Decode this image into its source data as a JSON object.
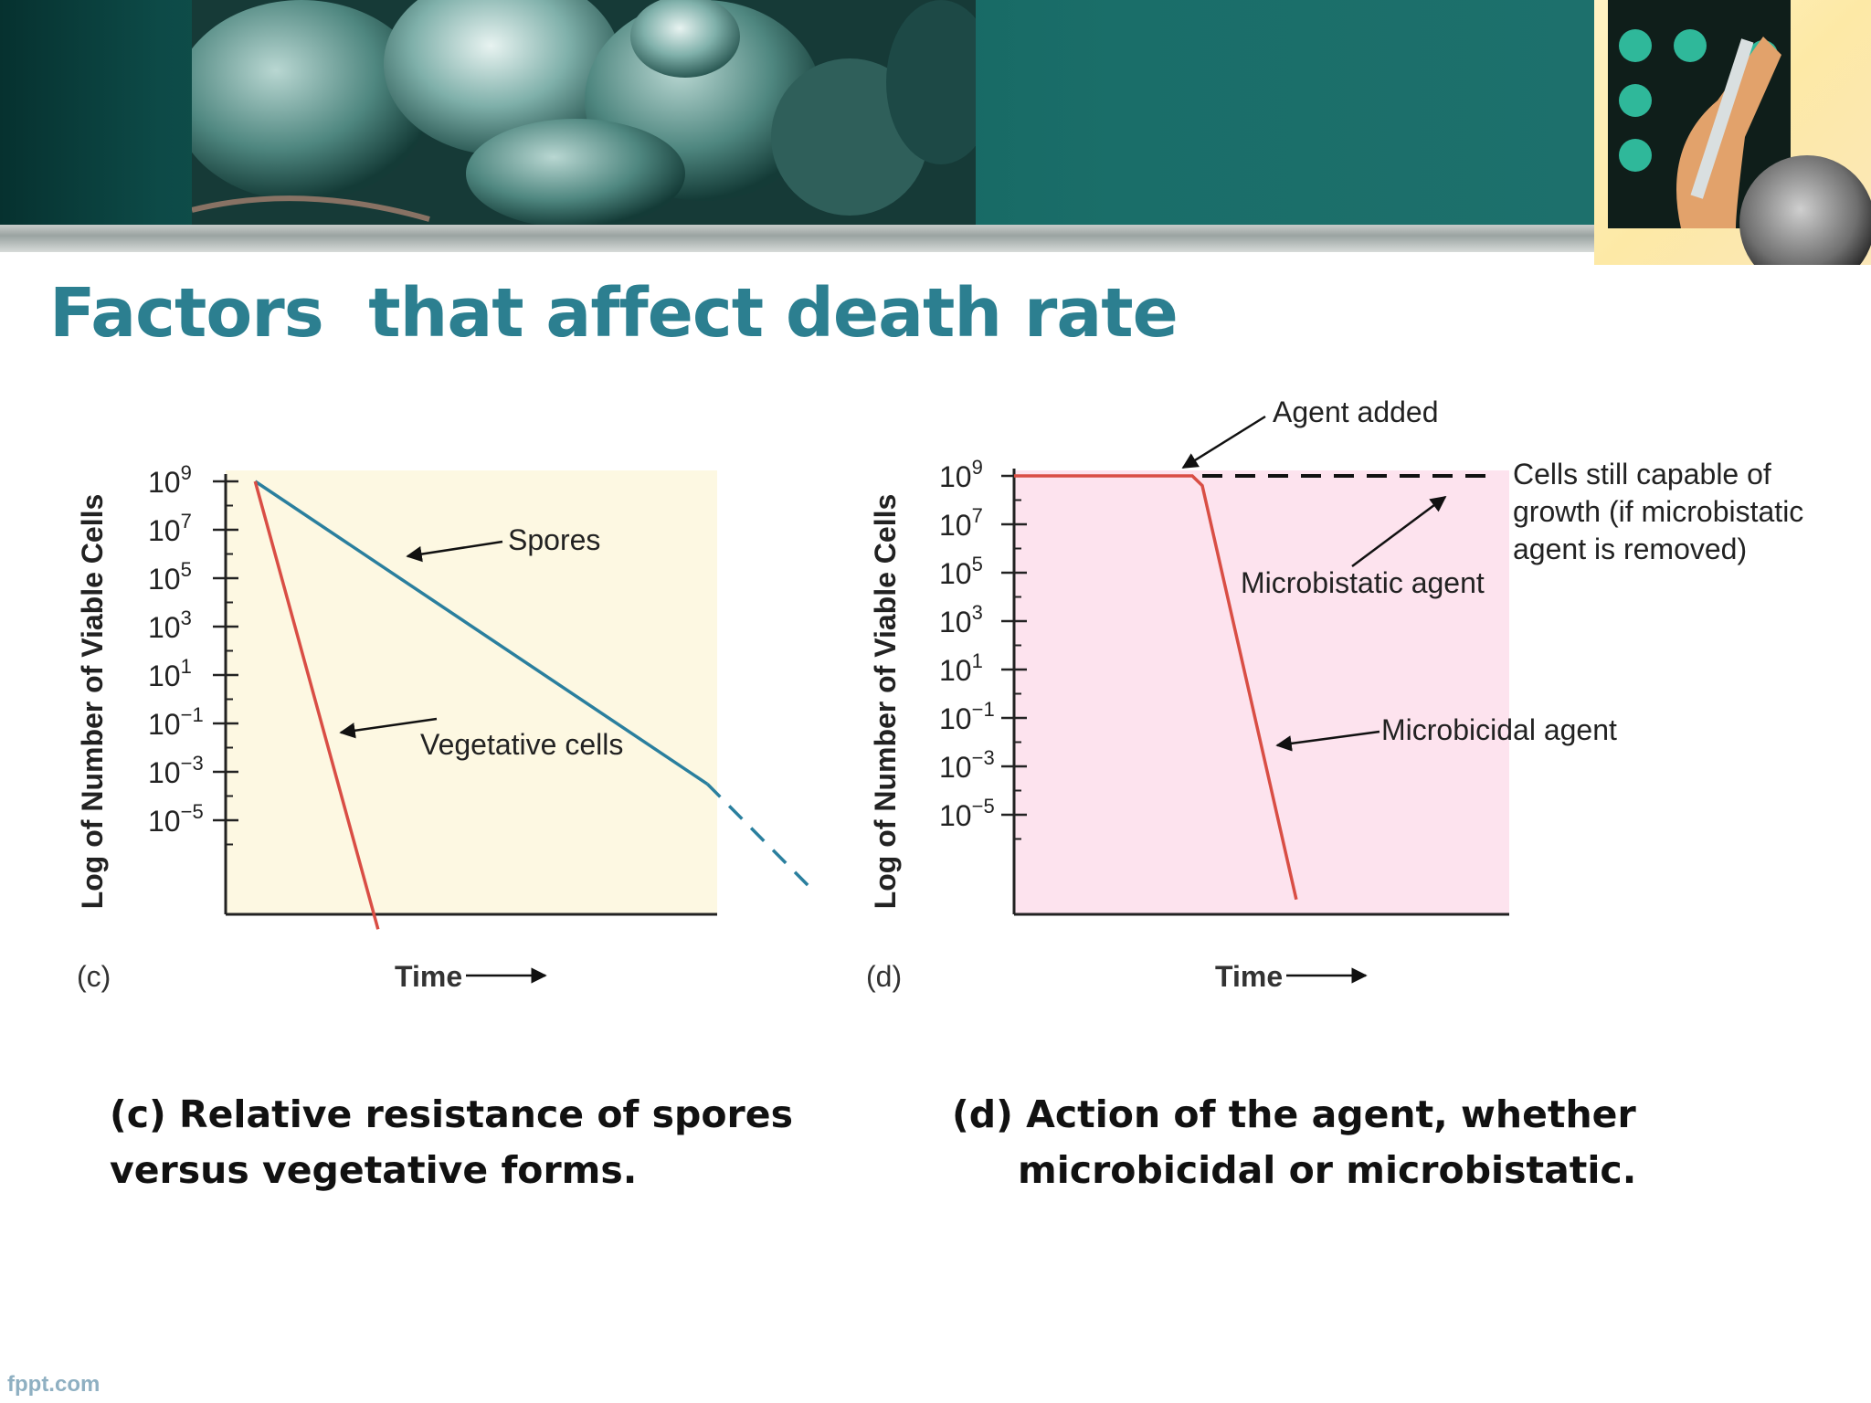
{
  "slide": {
    "title": "Factors  that affect death rate",
    "footer": "fppt.com",
    "colors": {
      "title": "#2c7f90",
      "banner": "#1a6e69"
    }
  },
  "captions": {
    "c_line1": "(c) Relative resistance of spores",
    "c_line2": "versus vegetative forms.",
    "d_line1": "(d) Action of the agent, whether",
    "d_line2": "microbicidal or microbistatic."
  },
  "chart_data": [
    {
      "type": "line",
      "panel_label": "(c)",
      "xlabel": "Time",
      "ylabel": "Log of Number of Viable Cells",
      "y_scale": "log",
      "yticks": [
        {
          "base": "10",
          "exp": "9"
        },
        {
          "base": "10",
          "exp": "7"
        },
        {
          "base": "10",
          "exp": "5"
        },
        {
          "base": "10",
          "exp": "3"
        },
        {
          "base": "10",
          "exp": "1"
        },
        {
          "base": "10",
          "exp": "−1"
        },
        {
          "base": "10",
          "exp": "−3"
        },
        {
          "base": "10",
          "exp": "−5"
        }
      ],
      "ylim_log10": [
        -9.5,
        9.3
      ],
      "xlim": [
        0,
        100
      ],
      "background": "#fdf8e2",
      "series": [
        {
          "name": "Spores",
          "color": "#2a7f9e",
          "x": [
            6,
            98
          ],
          "y_log10": [
            9,
            -3.5
          ],
          "extrapolated_to": [
            120,
            -8
          ]
        },
        {
          "name": "Vegetative cells",
          "color": "#d94e45",
          "x": [
            6,
            31
          ],
          "y_log10": [
            9,
            -9.5
          ]
        }
      ],
      "annotations": [
        {
          "text": "Spores",
          "points_to": "Spores"
        },
        {
          "text": "Vegetative cells",
          "points_to": "Vegetative cells"
        }
      ]
    },
    {
      "type": "line",
      "panel_label": "(d)",
      "xlabel": "Time",
      "ylabel": "Log of Number of Viable Cells",
      "y_scale": "log",
      "yticks": [
        {
          "base": "10",
          "exp": "9"
        },
        {
          "base": "10",
          "exp": "7"
        },
        {
          "base": "10",
          "exp": "5"
        },
        {
          "base": "10",
          "exp": "3"
        },
        {
          "base": "10",
          "exp": "1"
        },
        {
          "base": "10",
          "exp": "−1"
        },
        {
          "base": "10",
          "exp": "−3"
        },
        {
          "base": "10",
          "exp": "−5"
        }
      ],
      "ylim_log10": [
        -9.5,
        9.3
      ],
      "xlim": [
        0,
        100
      ],
      "background": "#fde3ee",
      "series": [
        {
          "name": "Microbicidal agent",
          "color": "#d94e45",
          "x": [
            0,
            36,
            38,
            57
          ],
          "y_log10": [
            9,
            9,
            8.6,
            -8.5
          ]
        },
        {
          "name": "Microbistatic agent",
          "color": "#111111",
          "style": "dashed",
          "x": [
            38,
            96
          ],
          "y_log10": [
            9,
            9
          ]
        }
      ],
      "annotations": [
        {
          "text": "Agent added",
          "points_to": "agent addition point"
        },
        {
          "text": "Microbistatic agent",
          "points_to": "Microbistatic agent"
        },
        {
          "text": "Microbicidal agent",
          "points_to": "Microbicidal agent"
        },
        {
          "text_lines": [
            "Cells still capable of",
            "growth (if microbistatic",
            "agent is removed)"
          ]
        }
      ]
    }
  ]
}
